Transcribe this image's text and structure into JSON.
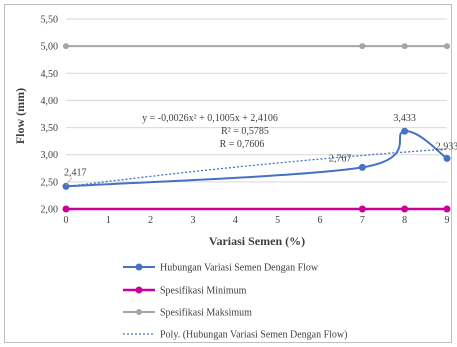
{
  "chart_data": {
    "type": "line",
    "xlabel": "Variasi Semen (%)",
    "ylabel": "Flow (mm)",
    "xlim": [
      0,
      9
    ],
    "ylim": [
      2.0,
      5.5
    ],
    "x_ticks": [
      "0",
      "1",
      "2",
      "3",
      "4",
      "5",
      "6",
      "7",
      "8",
      "9"
    ],
    "y_ticks": [
      "2,00",
      "2,50",
      "3,00",
      "3,50",
      "4,00",
      "4,50",
      "5,00",
      "5,50"
    ],
    "grid": "horizontal",
    "legend_position": "bottom",
    "series": [
      {
        "name": "Hubungan Variasi Semen Dengan Flow",
        "color": "#4472c4",
        "x": [
          0,
          7,
          8,
          9
        ],
        "values": [
          2.417,
          2.767,
          3.433,
          2.933
        ],
        "labels": [
          "2,417",
          "2,767",
          "3,433",
          "2,933"
        ],
        "style": "smooth-line-markers"
      },
      {
        "name": "Spesifikasi Minimum",
        "color": "#cc0099",
        "x": [
          0,
          7,
          8,
          9
        ],
        "values": [
          2.0,
          2.0,
          2.0,
          2.0
        ],
        "style": "line-markers"
      },
      {
        "name": "Spesifikasi Maksimum",
        "color": "#a5a5a5",
        "x": [
          0,
          7,
          8,
          9
        ],
        "values": [
          5.0,
          5.0,
          5.0,
          5.0
        ],
        "style": "line-markers"
      },
      {
        "name": "Poly. (Hubungan Variasi Semen Dengan Flow)",
        "color": "#4472c4",
        "style": "dotted-trendline",
        "coefficients": {
          "a": -0.0026,
          "b": 0.1005,
          "c": 2.4106
        }
      }
    ],
    "annotations": {
      "equation": "y = -0,0026x² + 0,1005x + 2,4106",
      "r_squared": "R² = 0,5785",
      "r": "R = 0,7606"
    }
  }
}
